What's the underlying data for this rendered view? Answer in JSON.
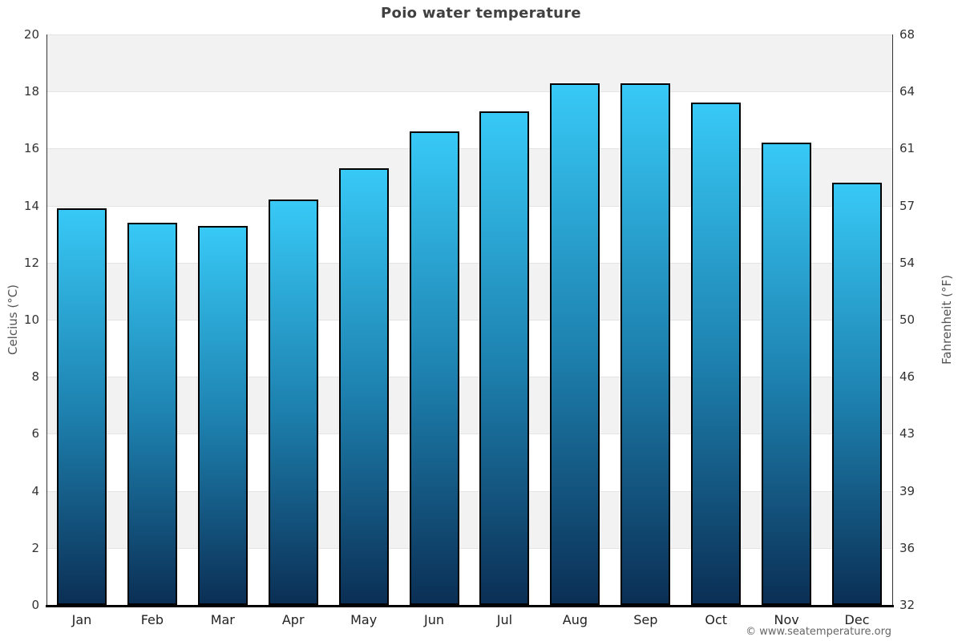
{
  "title": "Poio water temperature",
  "footer": "© www.seatemperature.org",
  "chart_data": {
    "type": "bar",
    "title": "Poio water temperature",
    "categories": [
      "Jan",
      "Feb",
      "Mar",
      "Apr",
      "May",
      "Jun",
      "Jul",
      "Aug",
      "Sep",
      "Oct",
      "Nov",
      "Dec"
    ],
    "values": [
      13.9,
      13.4,
      13.3,
      14.2,
      15.3,
      16.6,
      17.3,
      18.3,
      18.3,
      17.6,
      16.2,
      14.8
    ],
    "xlabel": "",
    "ylabel_left": "Celcius (°C)",
    "ylabel_right": "Fahrenheit (°F)",
    "ylim": [
      0,
      20
    ],
    "yticks_celsius": [
      0,
      2,
      4,
      6,
      8,
      10,
      12,
      14,
      16,
      18,
      20
    ],
    "yticks_fahrenheit_labels": [
      "32",
      "36",
      "39",
      "43",
      "46",
      "50",
      "54",
      "57",
      "61",
      "64",
      "68"
    ],
    "grid": "horizontal gridlines every 2°C with alternating background bands",
    "legend": "none",
    "colors": {
      "bar_top": "#38c9f6",
      "bar_mid": "#1d80ae",
      "bar_bottom": "#0b2f55",
      "bar_border": "#000000",
      "band_gray": "#f2f2f2",
      "band_white": "#ffffff",
      "gridline": "#e4e4e4",
      "axis_line": "#333333",
      "baseline": "#000000",
      "title_color": "#404040",
      "tick_color": "#333333",
      "axis_label_color": "#555555",
      "footer_color": "#666666"
    }
  }
}
